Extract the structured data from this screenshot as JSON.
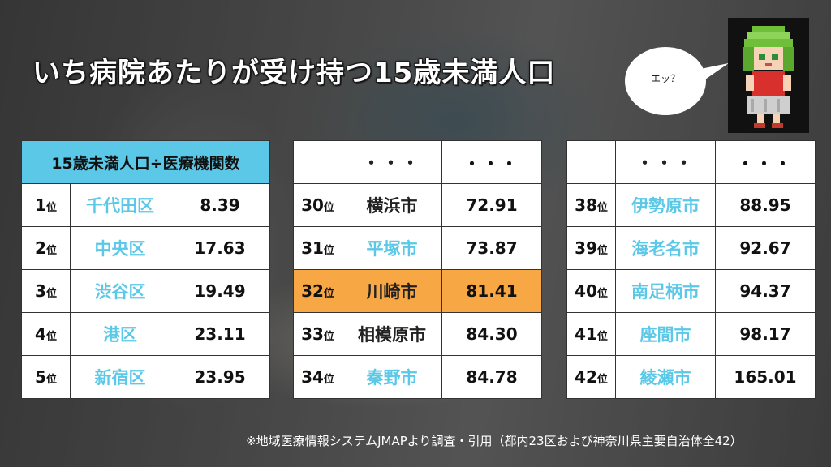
{
  "title": "いち病院あたりが受け持つ15歳未満人口",
  "bubble_text": "エッ？",
  "colors": {
    "accent": "#5bc8e8",
    "highlight": "#f7a744"
  },
  "table1": {
    "header": "15歳未満人口÷医療機関数",
    "unit": "位",
    "rows": [
      {
        "rank": "1",
        "name": "千代田区",
        "value": "8.39"
      },
      {
        "rank": "2",
        "name": "中央区",
        "value": "17.63"
      },
      {
        "rank": "3",
        "name": "渋谷区",
        "value": "19.49"
      },
      {
        "rank": "4",
        "name": "港区",
        "value": "23.11"
      },
      {
        "rank": "5",
        "name": "新宿区",
        "value": "23.95"
      }
    ]
  },
  "table2": {
    "dots_name": "・・・",
    "dots_value": "・・・",
    "unit": "位",
    "rows": [
      {
        "rank": "30",
        "name": "横浜市",
        "value": "72.91"
      },
      {
        "rank": "31",
        "name": "平塚市",
        "value": "73.87"
      },
      {
        "rank": "32",
        "name": "川崎市",
        "value": "81.41"
      },
      {
        "rank": "33",
        "name": "相模原市",
        "value": "84.30"
      },
      {
        "rank": "34",
        "name": "秦野市",
        "value": "84.78"
      }
    ]
  },
  "table3": {
    "dots_name": "・・・",
    "dots_value": "・・・",
    "unit": "位",
    "rows": [
      {
        "rank": "38",
        "name": "伊勢原市",
        "value": "88.95"
      },
      {
        "rank": "39",
        "name": "海老名市",
        "value": "92.67"
      },
      {
        "rank": "40",
        "name": "南足柄市",
        "value": "94.37"
      },
      {
        "rank": "41",
        "name": "座間市",
        "value": "98.17"
      },
      {
        "rank": "42",
        "name": "綾瀬市",
        "value": "165.01"
      }
    ]
  },
  "footnote": "※地域医療情報システムJMAPより調査・引用（都内23区および神奈川県主要自治体全42）"
}
